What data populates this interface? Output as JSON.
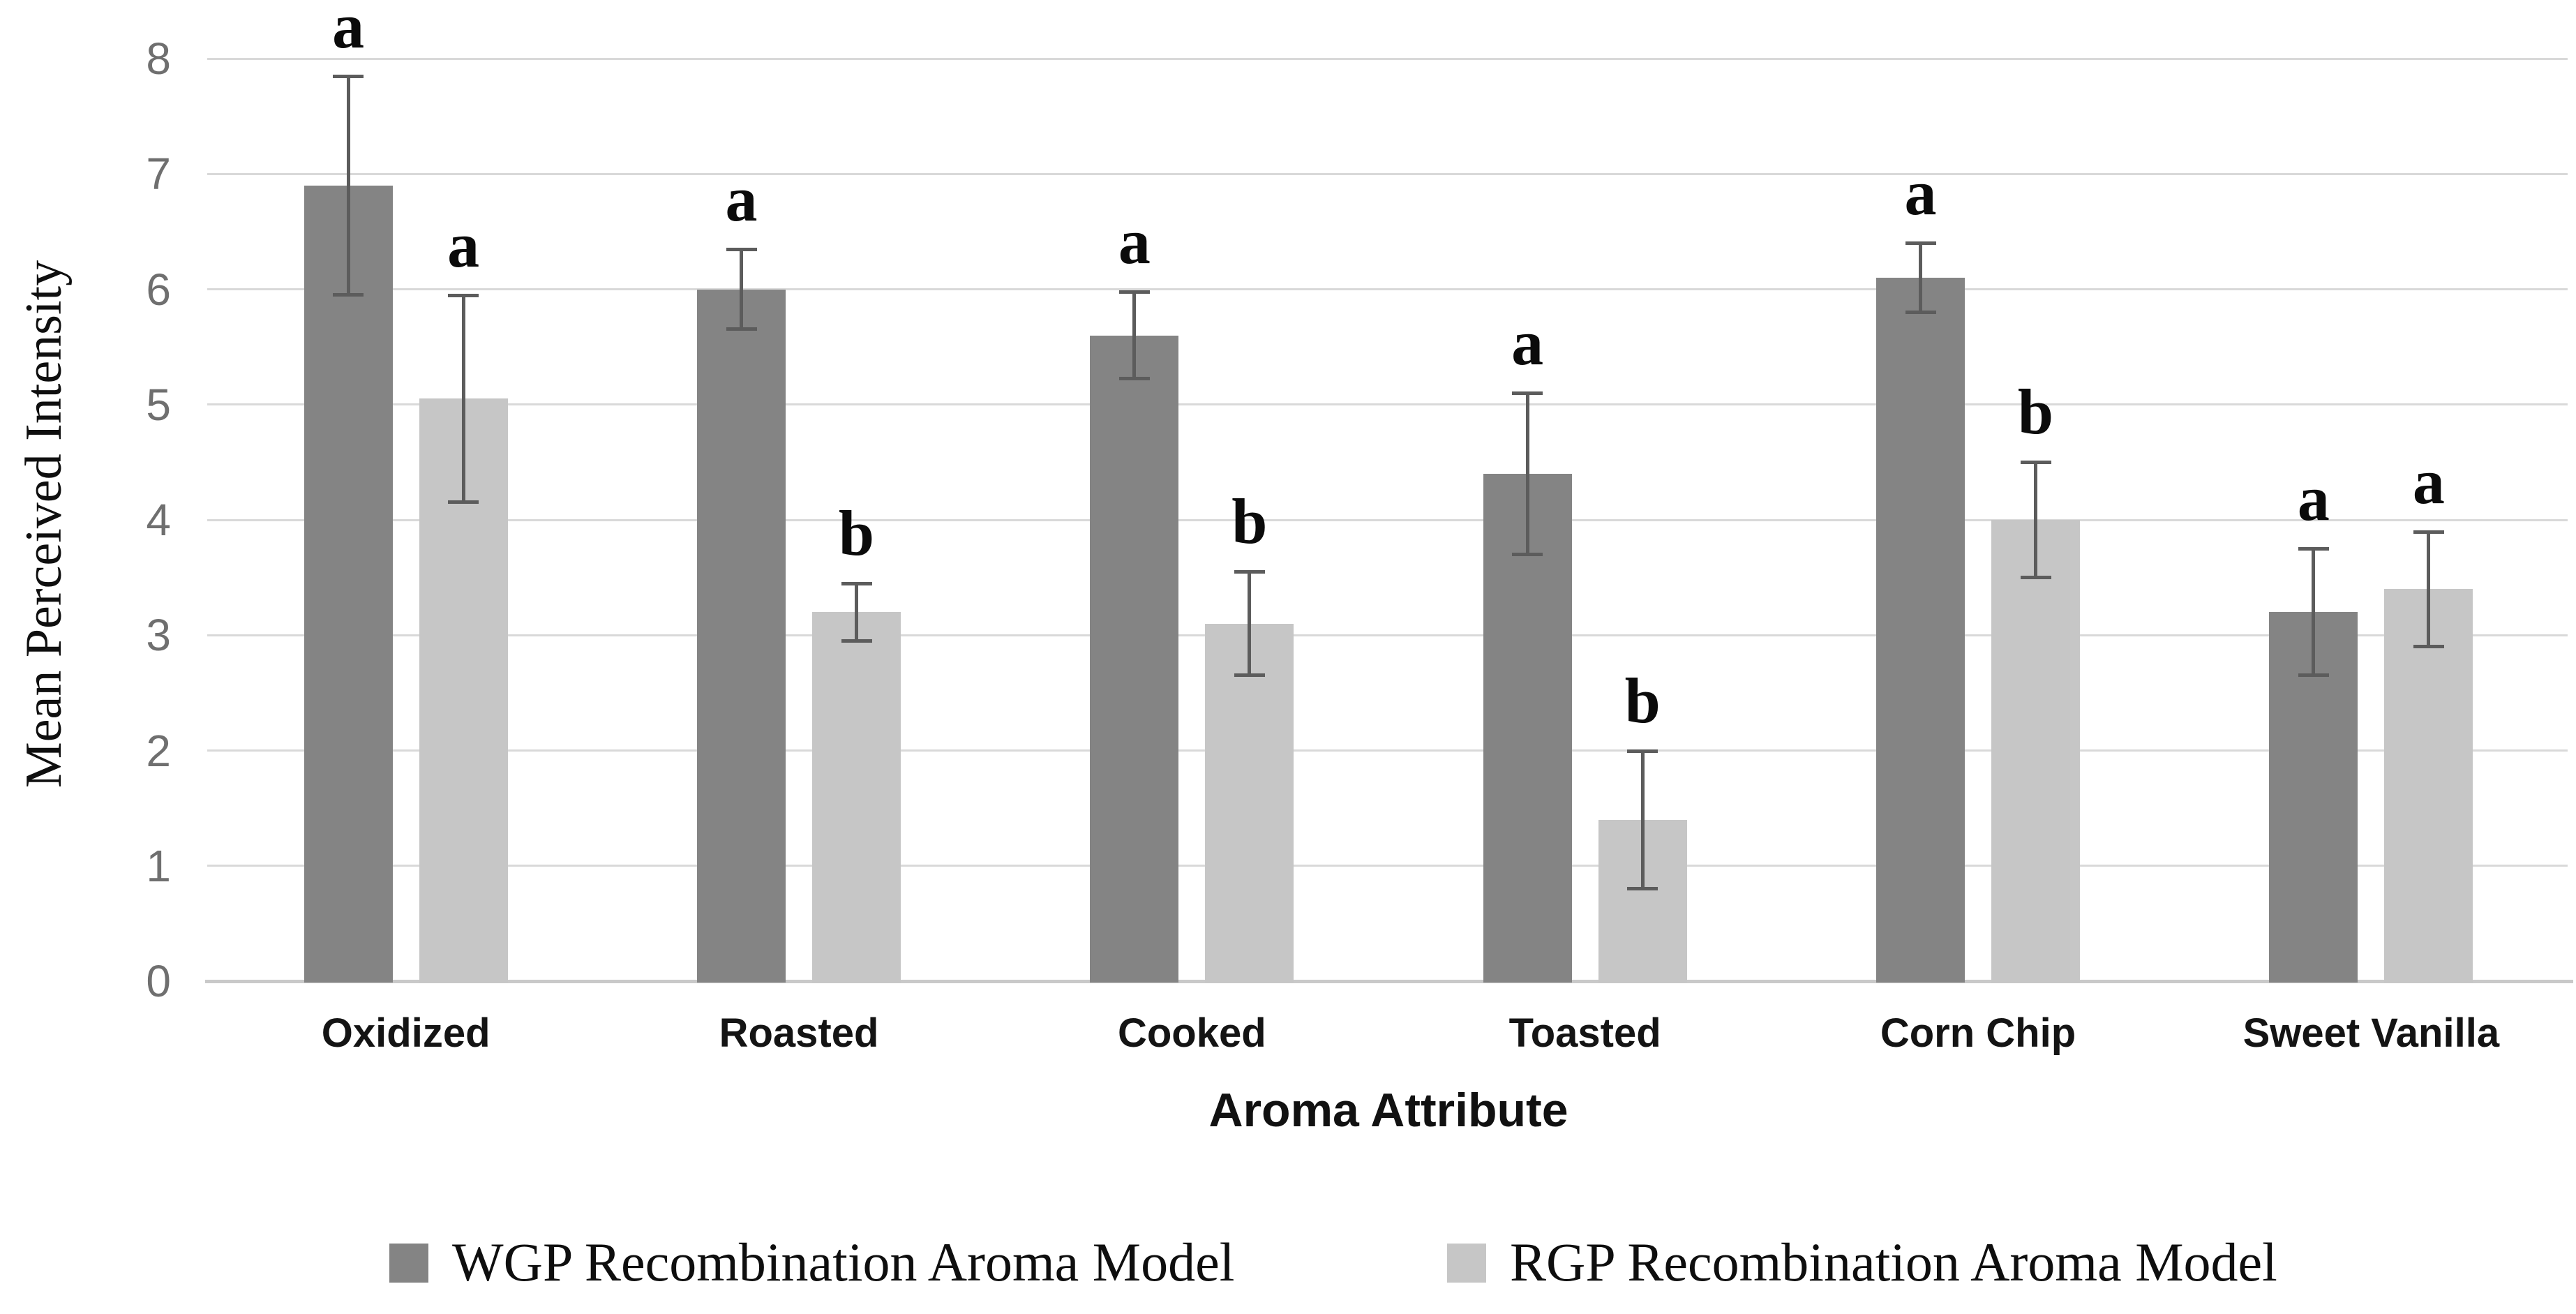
{
  "chart_data": {
    "type": "bar",
    "title": "",
    "xlabel": "Aroma Attribute",
    "ylabel": "Mean Perceived Intensity",
    "categories": [
      "Oxidized",
      "Roasted",
      "Cooked",
      "Toasted",
      "Corn Chip",
      "Sweet Vanilla"
    ],
    "ylim": [
      0,
      8
    ],
    "y_ticks": [
      0,
      1,
      2,
      3,
      4,
      5,
      6,
      7,
      8
    ],
    "grid": "horizontal-only",
    "legend_position": "bottom",
    "error_bars": true,
    "series": [
      {
        "name": "WGP Recombination Aroma Model",
        "color": "#848484",
        "values": [
          6.9,
          6.0,
          5.6,
          4.4,
          6.1,
          3.2
        ],
        "errors": [
          0.95,
          0.35,
          0.38,
          0.7,
          0.3,
          0.55
        ],
        "sig_letters": [
          "a",
          "a",
          "a",
          "a",
          "a",
          "a"
        ]
      },
      {
        "name": "RGP Recombination Aroma Model",
        "color": "#c6c6c6",
        "values": [
          5.05,
          3.2,
          3.1,
          1.4,
          4.0,
          3.4
        ],
        "errors": [
          0.9,
          0.25,
          0.45,
          0.6,
          0.5,
          0.5
        ],
        "sig_letters": [
          "a",
          "b",
          "b",
          "b",
          "b",
          "a"
        ]
      }
    ]
  },
  "style_colors": {
    "gridline": "#d9d9d9",
    "axis_line": "#c9c9c9",
    "error_bar": "#5c5c5c",
    "tick_label": "#6f6f6f",
    "text": "#0f0f0f"
  }
}
